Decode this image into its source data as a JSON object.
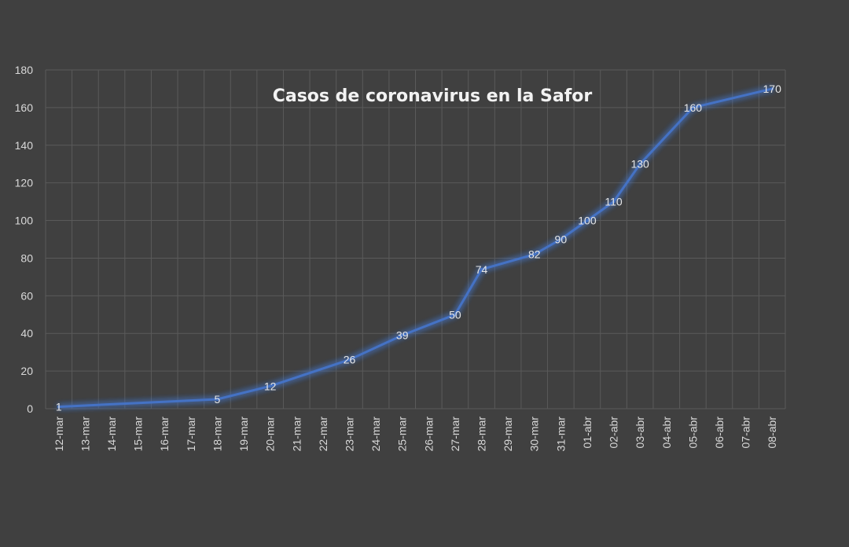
{
  "chart_data": {
    "type": "line",
    "title": "Casos de coronavirus en la Safor",
    "xlabel": "",
    "ylabel": "",
    "ylim": [
      0,
      180
    ],
    "yticks": [
      0,
      20,
      40,
      60,
      80,
      100,
      120,
      140,
      160,
      180
    ],
    "grid": true,
    "legend": "none",
    "categories": [
      "12-mar",
      "13-mar",
      "14-mar",
      "15-mar",
      "16-mar",
      "17-mar",
      "18-mar",
      "19-mar",
      "20-mar",
      "21-mar",
      "22-mar",
      "23-mar",
      "24-mar",
      "25-mar",
      "26-mar",
      "27-mar",
      "28-mar",
      "29-mar",
      "30-mar",
      "31-mar",
      "01-abr",
      "02-abr",
      "03-abr",
      "04-abr",
      "05-abr",
      "06-abr",
      "07-abr",
      "08-abr"
    ],
    "series": [
      {
        "color": "#4472c4",
        "points": [
          {
            "x": "12-mar",
            "y": 1
          },
          {
            "x": "18-mar",
            "y": 5
          },
          {
            "x": "20-mar",
            "y": 12
          },
          {
            "x": "23-mar",
            "y": 26
          },
          {
            "x": "25-mar",
            "y": 39
          },
          {
            "x": "27-mar",
            "y": 50
          },
          {
            "x": "28-mar",
            "y": 74
          },
          {
            "x": "30-mar",
            "y": 82
          },
          {
            "x": "31-mar",
            "y": 90
          },
          {
            "x": "01-abr",
            "y": 100
          },
          {
            "x": "02-abr",
            "y": 110
          },
          {
            "x": "03-abr",
            "y": 130
          },
          {
            "x": "05-abr",
            "y": 160
          },
          {
            "x": "08-abr",
            "y": 170
          }
        ],
        "labels": [
          "1",
          "5",
          "12",
          "26",
          "39",
          "50",
          "74",
          "82",
          "90",
          "100",
          "110",
          "130",
          "160",
          "170"
        ]
      }
    ]
  }
}
